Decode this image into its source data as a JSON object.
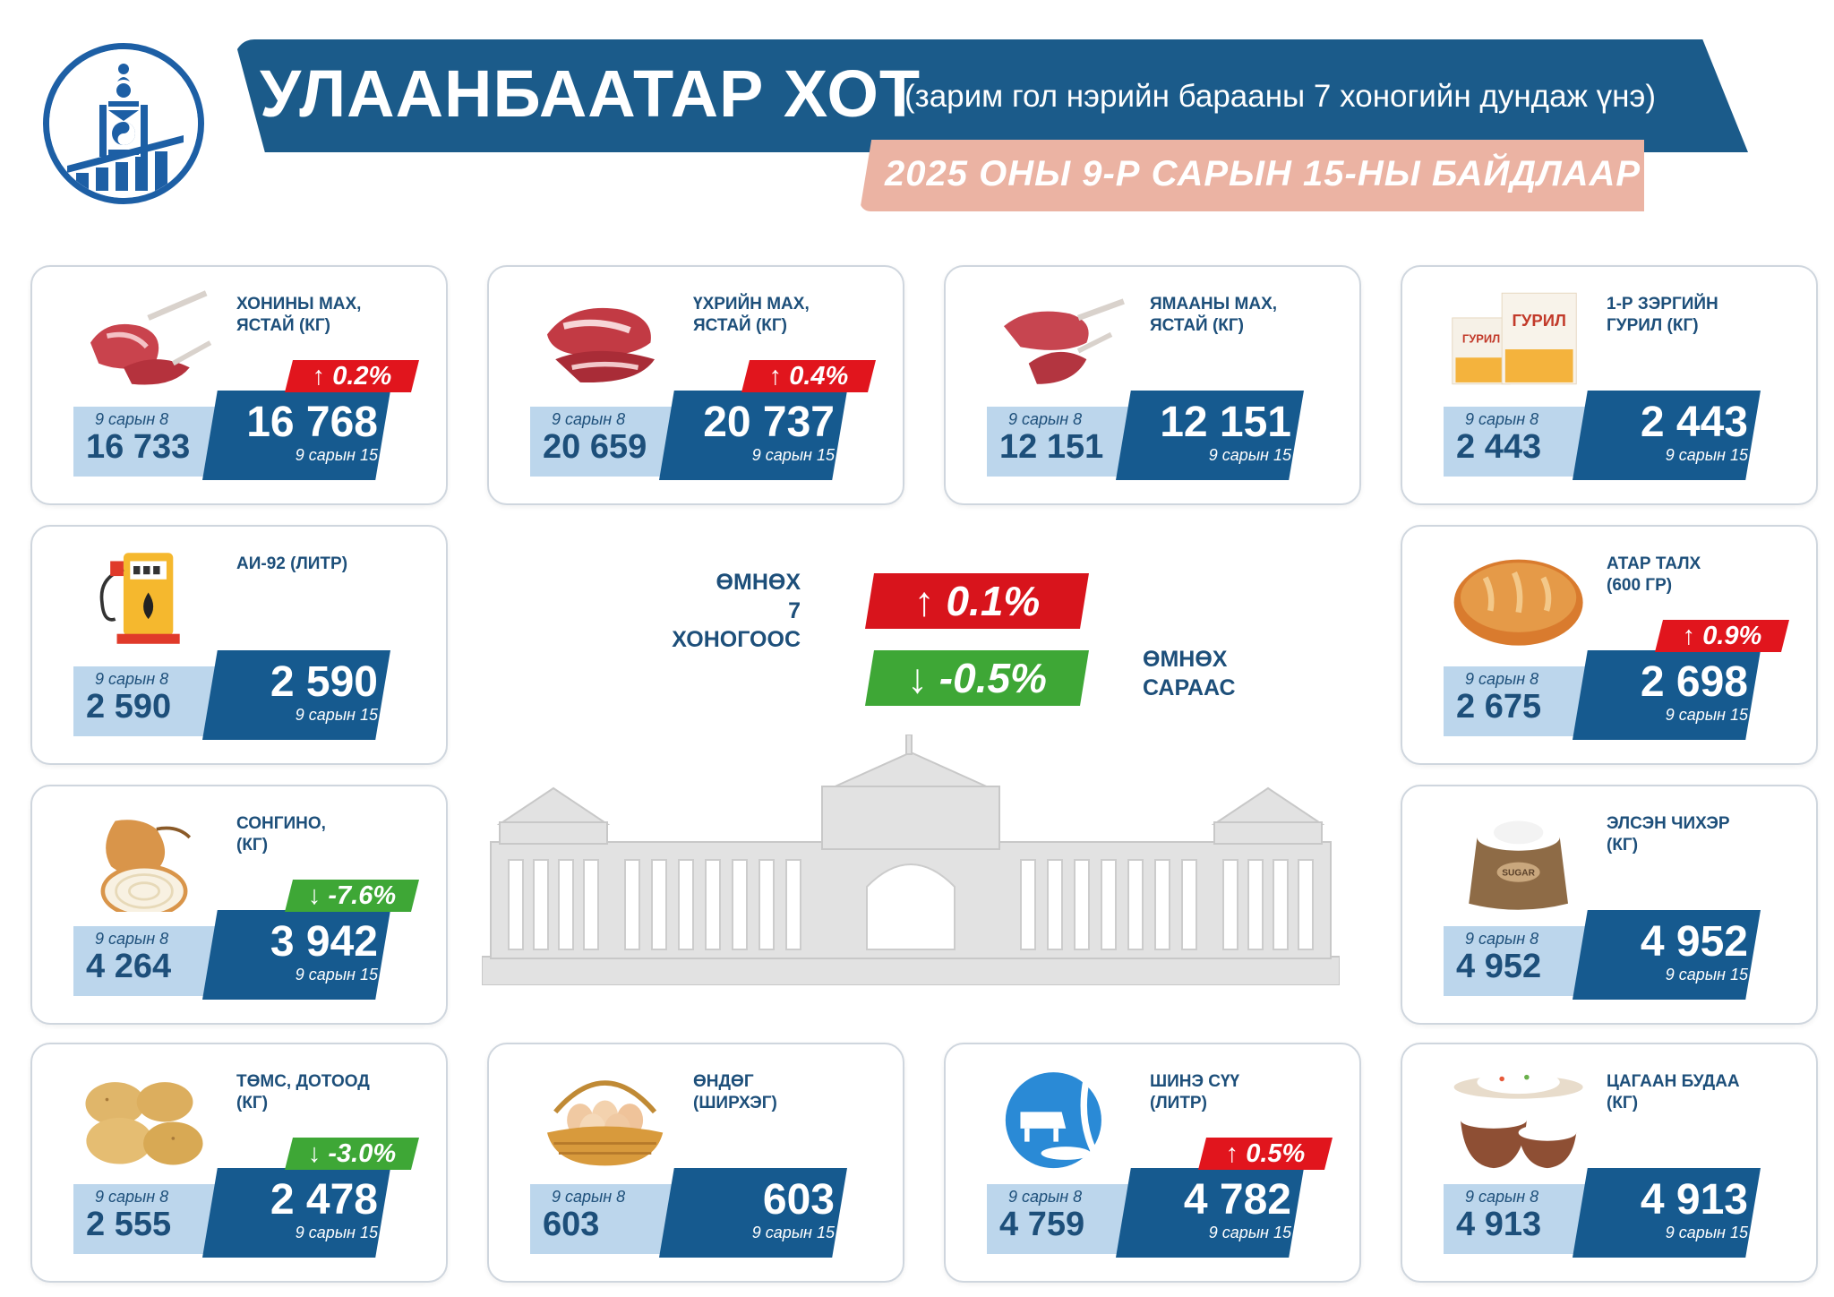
{
  "header": {
    "title": "УЛААНБААТАР ХОТ",
    "subtitle": "(зарим гол нэрийн барааны 7 хоногийн дундаж үнэ)",
    "date_line": "2025 ОНЫ 9-Р САРЫН 15-НЫ БАЙДЛААР"
  },
  "summary": {
    "week_label_1": "ӨМНӨХ",
    "week_label_2": "7 ХОНОГООС",
    "week_change": "↑  0.1%",
    "week_direction": "up",
    "month_label_1": "ӨМНӨХ",
    "month_label_2": "САРААС",
    "month_change": "↓  -0.5%",
    "month_direction": "down"
  },
  "colors": {
    "navy": "#1b5b8a",
    "light_blue": "#bcd6ec",
    "salmon": "#ebb3a3",
    "up_red": "#e1151d",
    "down_green": "#3ea736"
  },
  "items": [
    {
      "name_1": "ХОНИНЫ МАХ,",
      "name_2": "ЯСТАЙ (КГ)",
      "icon": "mutton-icon",
      "prev_date": "9 сарын 8",
      "prev": "16 733",
      "cur": "16 768",
      "cur_date": "9 сарын 15",
      "change": "↑  0.2%",
      "direction": "up"
    },
    {
      "name_1": "ҮХРИЙН МАХ,",
      "name_2": "ЯСТАЙ (КГ)",
      "icon": "beef-icon",
      "prev_date": "9 сарын 8",
      "prev": "20 659",
      "cur": "20 737",
      "cur_date": "9 сарын 15",
      "change": "↑  0.4%",
      "direction": "up"
    },
    {
      "name_1": "ЯМААНЫ МАХ,",
      "name_2": "ЯСТАЙ (КГ)",
      "icon": "goat-meat-icon",
      "prev_date": "9 сарын 8",
      "prev": "12 151",
      "cur": "12 151",
      "cur_date": "9 сарын 15",
      "change": "",
      "direction": "none"
    },
    {
      "name_1": "1-Р ЗЭРГИЙН",
      "name_2": "ГУРИЛ (КГ)",
      "icon": "flour-icon",
      "icon_text": "ГУРИЛ",
      "prev_date": "9 сарын 8",
      "prev": "2 443",
      "cur": "2 443",
      "cur_date": "9 сарын 15",
      "change": "",
      "direction": "none"
    },
    {
      "name_1": "АИ-92 (ЛИТР)",
      "name_2": "",
      "icon": "fuel-pump-icon",
      "prev_date": "9 сарын 8",
      "prev": "2 590",
      "cur": "2 590",
      "cur_date": "9 сарын 15",
      "change": "",
      "direction": "none"
    },
    {
      "name_1": "АТАР ТАЛХ",
      "name_2": "(600 ГР)",
      "icon": "bread-icon",
      "prev_date": "9 сарын 8",
      "prev": "2 675",
      "cur": "2 698",
      "cur_date": "9 сарын 15",
      "change": "↑  0.9%",
      "direction": "up"
    },
    {
      "name_1": "СОНГИНО,",
      "name_2": "(КГ)",
      "icon": "onion-icon",
      "prev_date": "9 сарын 8",
      "prev": "4 264",
      "cur": "3 942",
      "cur_date": "9 сарын 15",
      "change": "↓  -7.6%",
      "direction": "down"
    },
    {
      "name_1": "ЭЛСЭН ЧИХЭР",
      "name_2": "(КГ)",
      "icon": "sugar-sack-icon",
      "icon_text": "SUGAR",
      "prev_date": "9 сарын 8",
      "prev": "4 952",
      "cur": "4 952",
      "cur_date": "9 сарын 15",
      "change": "",
      "direction": "none"
    },
    {
      "name_1": "ТӨМС, ДОТООД",
      "name_2": "(КГ)",
      "icon": "potato-icon",
      "prev_date": "9 сарын 8",
      "prev": "2 555",
      "cur": "2 478",
      "cur_date": "9 сарын 15",
      "change": "↓  -3.0%",
      "direction": "down"
    },
    {
      "name_1": "ӨНДӨГ",
      "name_2": "(ШИРХЭГ)",
      "icon": "egg-basket-icon",
      "prev_date": "9 сарын 8",
      "prev": "603",
      "cur": "603",
      "cur_date": "9 сарын 15",
      "change": "",
      "direction": "none"
    },
    {
      "name_1": "ШИНЭ СҮҮ",
      "name_2": "(ЛИТР)",
      "icon": "milk-icon",
      "prev_date": "9 сарын 8",
      "prev": "4 759",
      "cur": "4 782",
      "cur_date": "9 сарын 15",
      "change": "↑  0.5%",
      "direction": "up"
    },
    {
      "name_1": "ЦАГААН БУДАА",
      "name_2": "(КГ)",
      "icon": "rice-bowl-icon",
      "prev_date": "9 сарын 8",
      "prev": "4 913",
      "cur": "4 913",
      "cur_date": "9 сарын 15",
      "change": "",
      "direction": "none"
    }
  ]
}
